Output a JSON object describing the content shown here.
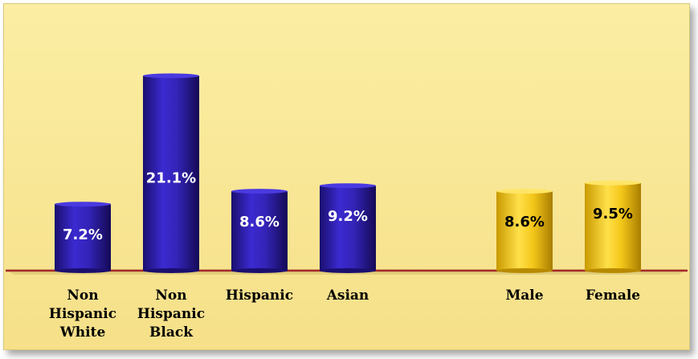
{
  "chart_data": {
    "type": "bar",
    "categories": [
      [
        "Non",
        "Hispanic",
        "White"
      ],
      [
        "Non",
        "Hispanic",
        "Black"
      ],
      [
        "Hispanic"
      ],
      [
        "Asian"
      ],
      [
        "Male"
      ],
      [
        "Female"
      ]
    ],
    "values": [
      7.2,
      21.1,
      8.6,
      9.2,
      8.6,
      9.5
    ],
    "value_labels": [
      "7.2%",
      "21.1%",
      "8.6%",
      "9.2%",
      "8.6%",
      "9.5%"
    ],
    "groups": [
      "race",
      "race",
      "race",
      "race",
      "gender",
      "gender"
    ],
    "colors": {
      "race": "#2c1a9e",
      "gender": "#f2c40f",
      "baseline": "#a52a2a",
      "frame_bg": "#f9e89a"
    },
    "label_colors": {
      "race": "#ffffff",
      "gender": "#000000"
    },
    "title": "",
    "xlabel": "",
    "ylabel": "",
    "grid": false
  }
}
